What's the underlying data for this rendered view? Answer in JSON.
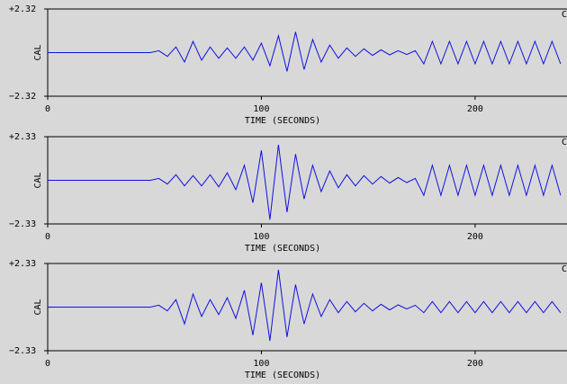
{
  "chart_data": [
    {
      "type": "line",
      "ylabel": "CAL",
      "xlabel": "TIME (SECONDS)",
      "corner_label": "C",
      "xlim": [
        0,
        243
      ],
      "xticks": [
        0,
        100,
        200
      ],
      "ylim": [
        -2.32,
        2.32
      ],
      "yticks": [
        {
          "value": 2.32,
          "label": "+2.32"
        },
        {
          "value": -2.32,
          "label": "−2.32"
        }
      ],
      "series": [
        {
          "color": "#1010e0",
          "x": [
            0,
            4,
            8,
            12,
            16,
            20,
            24,
            28,
            32,
            36,
            40,
            44,
            48,
            52,
            56,
            60,
            64,
            68,
            72,
            76,
            80,
            84,
            88,
            92,
            96,
            100,
            104,
            108,
            112,
            116,
            120,
            124,
            128,
            132,
            136,
            140,
            144,
            148,
            152,
            156,
            160,
            164,
            168,
            172,
            176,
            180,
            184,
            188,
            192,
            196,
            200,
            204,
            208,
            212,
            216,
            220,
            224,
            228,
            232,
            236,
            240
          ],
          "values": [
            0,
            0,
            0,
            0,
            0,
            0,
            0,
            0,
            0,
            0,
            0,
            0,
            0,
            0.1,
            -0.2,
            0.3,
            -0.5,
            0.6,
            -0.4,
            0.3,
            -0.3,
            0.25,
            -0.3,
            0.3,
            -0.4,
            0.5,
            -0.7,
            0.9,
            -1.0,
            1.1,
            -0.9,
            0.7,
            -0.5,
            0.4,
            -0.3,
            0.25,
            -0.2,
            0.2,
            -0.15,
            0.15,
            -0.12,
            0.1,
            -0.1,
            0.1,
            -0.6,
            0.6,
            -0.6,
            0.6,
            -0.6,
            0.6,
            -0.6,
            0.6,
            -0.6,
            0.6,
            -0.6,
            0.6,
            -0.6,
            0.6,
            -0.6,
            0.6,
            -0.6
          ]
        }
      ]
    },
    {
      "type": "line",
      "ylabel": "CAL",
      "xlabel": "TIME (SECONDS)",
      "corner_label": "C",
      "xlim": [
        0,
        243
      ],
      "xticks": [
        0,
        100,
        200
      ],
      "ylim": [
        -2.33,
        2.33
      ],
      "yticks": [
        {
          "value": 2.33,
          "label": "+2.33"
        },
        {
          "value": -2.33,
          "label": "−2.33"
        }
      ],
      "series": [
        {
          "color": "#1010e0",
          "x": [
            0,
            4,
            8,
            12,
            16,
            20,
            24,
            28,
            32,
            36,
            40,
            44,
            48,
            52,
            56,
            60,
            64,
            68,
            72,
            76,
            80,
            84,
            88,
            92,
            96,
            100,
            104,
            108,
            112,
            116,
            120,
            124,
            128,
            132,
            136,
            140,
            144,
            148,
            152,
            156,
            160,
            164,
            168,
            172,
            176,
            180,
            184,
            188,
            192,
            196,
            200,
            204,
            208,
            212,
            216,
            220,
            224,
            228,
            232,
            236,
            240
          ],
          "values": [
            0,
            0,
            0,
            0,
            0,
            0,
            0,
            0,
            0,
            0,
            0,
            0,
            0,
            0.1,
            -0.2,
            0.3,
            -0.3,
            0.25,
            -0.3,
            0.3,
            -0.35,
            0.4,
            -0.5,
            0.8,
            -1.2,
            1.6,
            -2.1,
            1.9,
            -1.7,
            1.4,
            -1.0,
            0.8,
            -0.6,
            0.5,
            -0.4,
            0.3,
            -0.3,
            0.25,
            -0.2,
            0.2,
            -0.15,
            0.15,
            -0.12,
            0.1,
            -0.8,
            0.8,
            -0.8,
            0.8,
            -0.8,
            0.8,
            -0.8,
            0.8,
            -0.8,
            0.8,
            -0.8,
            0.8,
            -0.8,
            0.8,
            -0.8,
            0.8,
            -0.8
          ]
        }
      ]
    },
    {
      "type": "line",
      "ylabel": "CAL",
      "xlabel": "TIME (SECONDS)",
      "corner_label": "C",
      "xlim": [
        0,
        243
      ],
      "xticks": [
        0,
        100,
        200
      ],
      "ylim": [
        -2.33,
        2.33
      ],
      "yticks": [
        {
          "value": 2.33,
          "label": "+2.33"
        },
        {
          "value": -2.33,
          "label": "−2.33"
        }
      ],
      "series": [
        {
          "color": "#1010e0",
          "x": [
            0,
            4,
            8,
            12,
            16,
            20,
            24,
            28,
            32,
            36,
            40,
            44,
            48,
            52,
            56,
            60,
            64,
            68,
            72,
            76,
            80,
            84,
            88,
            92,
            96,
            100,
            104,
            108,
            112,
            116,
            120,
            124,
            128,
            132,
            136,
            140,
            144,
            148,
            152,
            156,
            160,
            164,
            168,
            172,
            176,
            180,
            184,
            188,
            192,
            196,
            200,
            204,
            208,
            212,
            216,
            220,
            224,
            228,
            232,
            236,
            240
          ],
          "values": [
            0,
            0,
            0,
            0,
            0,
            0,
            0,
            0,
            0,
            0,
            0,
            0,
            0,
            0.1,
            -0.2,
            0.4,
            -0.9,
            0.7,
            -0.5,
            0.4,
            -0.4,
            0.5,
            -0.6,
            0.9,
            -1.5,
            1.3,
            -1.8,
            2.0,
            -1.6,
            1.2,
            -0.9,
            0.7,
            -0.5,
            0.4,
            -0.3,
            0.3,
            -0.25,
            0.2,
            -0.2,
            0.15,
            -0.15,
            0.12,
            -0.1,
            0.1,
            -0.3,
            0.3,
            -0.3,
            0.3,
            -0.3,
            0.3,
            -0.3,
            0.3,
            -0.3,
            0.3,
            -0.3,
            0.3,
            -0.3,
            0.3,
            -0.3,
            0.3,
            -0.3
          ]
        }
      ]
    }
  ]
}
